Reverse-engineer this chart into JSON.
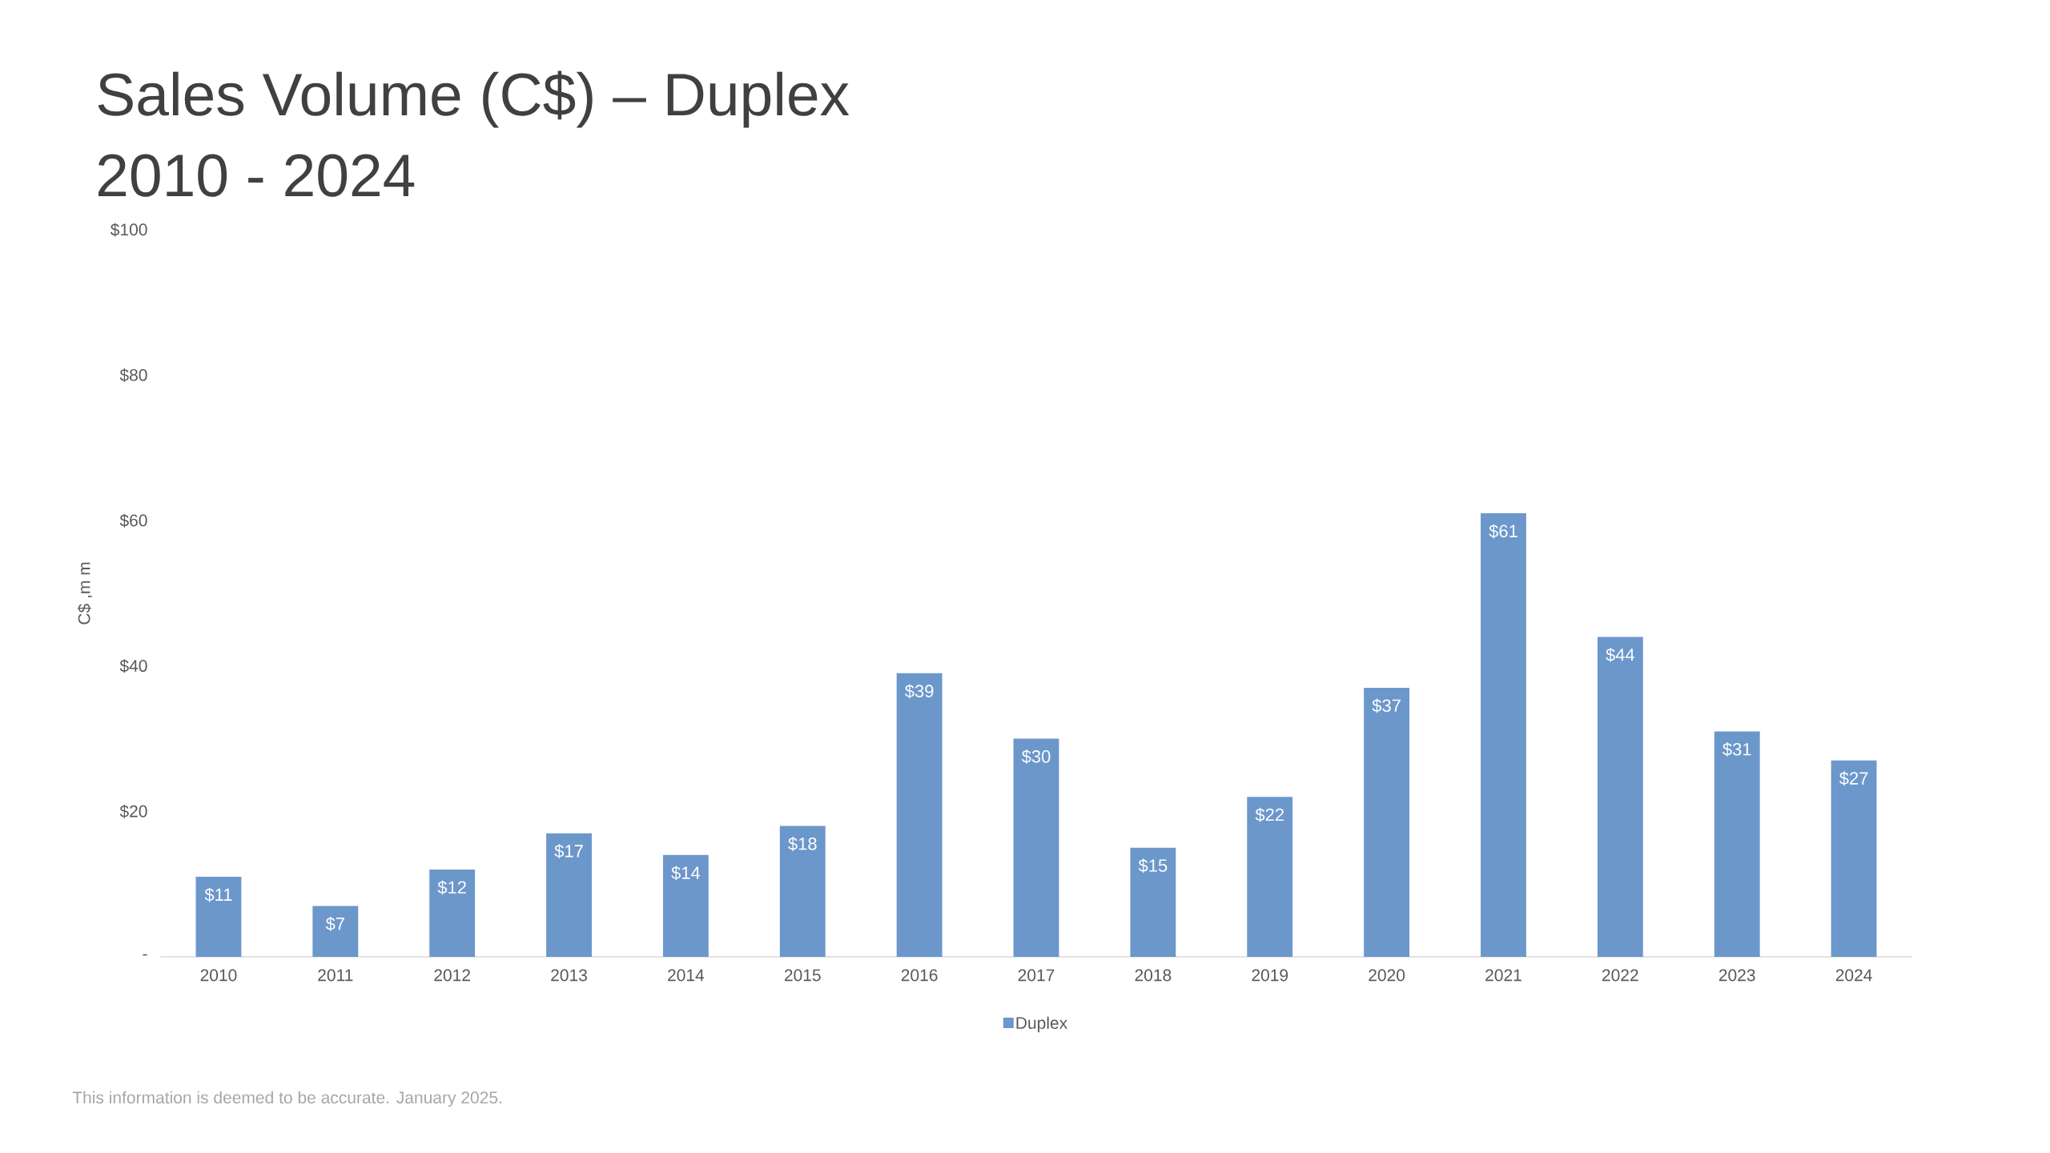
{
  "chart_data": {
    "type": "bar",
    "title": "Sales Volume (C$) – Duplex",
    "subtitle": "2010 - 2024",
    "ylabel": "C$ ,m m",
    "categories": [
      "2010",
      "2011",
      "2012",
      "2013",
      "2014",
      "2015",
      "2016",
      "2017",
      "2018",
      "2019",
      "2020",
      "2021",
      "2022",
      "2023",
      "2024"
    ],
    "series": [
      {
        "name": "Duplex",
        "color": "#6c97cb",
        "values": [
          11,
          7,
          12,
          17,
          14,
          18,
          39,
          30,
          15,
          22,
          37,
          61,
          44,
          31,
          27
        ],
        "value_labels": [
          "$11",
          "$7",
          "$12",
          "$17",
          "$14",
          "$18",
          "$39",
          "$30",
          "$15",
          "$22",
          "$37",
          "$61",
          "$44",
          "$31",
          "$27"
        ]
      }
    ],
    "ylim": [
      0,
      100
    ],
    "yticks": [
      {
        "value": 0,
        "label": "-"
      },
      {
        "value": 20,
        "label": "$20"
      },
      {
        "value": 40,
        "label": "$40"
      },
      {
        "value": 60,
        "label": "$60"
      },
      {
        "value": 80,
        "label": "$80"
      },
      {
        "value": 100,
        "label": "$100"
      }
    ],
    "legend": "bottom",
    "annotations": [
      "This information is deemed to be accurate. January 2025."
    ]
  }
}
